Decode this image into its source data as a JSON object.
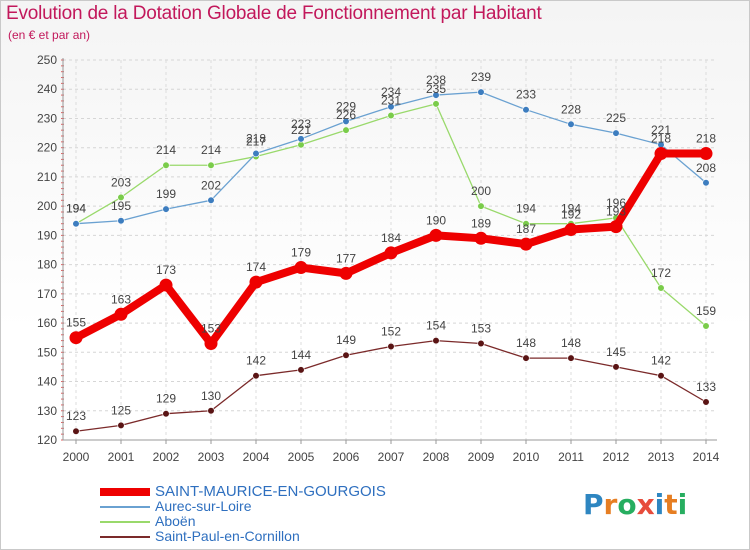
{
  "title": "Evolution de la Dotation Globale de Fonctionnement par Habitant",
  "subtitle": "(en € et par an)",
  "logo": {
    "text": "Proxiti",
    "letters": [
      "P",
      "r",
      "o",
      "x",
      "i",
      "t",
      "i"
    ],
    "colors": [
      "#2e86c1",
      "#e67e22",
      "#27ae60",
      "#e74c3c",
      "#2e86c1",
      "#e67e22",
      "#27ae60"
    ]
  },
  "chart_data": {
    "type": "line",
    "title": "Evolution de la Dotation Globale de Fonctionnement par Habitant",
    "subtitle": "(en € et par an)",
    "xlabel": "",
    "ylabel": "",
    "x": [
      "2000",
      "2001",
      "2002",
      "2003",
      "2004",
      "2005",
      "2006",
      "2007",
      "2008",
      "2009",
      "2010",
      "2011",
      "2012",
      "2013",
      "2014"
    ],
    "ylim": [
      120,
      250
    ],
    "yticks": [
      120,
      130,
      140,
      150,
      160,
      170,
      180,
      190,
      200,
      210,
      220,
      230,
      240,
      250
    ],
    "grid": true,
    "legend_position": "bottom-left",
    "series": [
      {
        "name": "Saint-Paul-en-Cornillon",
        "color": "#7b2a2a",
        "marker": "#5a1414",
        "emphasis": false,
        "values": [
          123,
          125,
          129,
          130,
          142,
          144,
          149,
          152,
          154,
          153,
          148,
          148,
          145,
          142,
          133
        ]
      },
      {
        "name": "Aboën",
        "color": "#99d96b",
        "marker": "#7acc4a",
        "emphasis": false,
        "values": [
          194,
          203,
          214,
          214,
          217,
          221,
          226,
          231,
          235,
          200,
          194,
          194,
          196,
          172,
          159
        ]
      },
      {
        "name": "Aurec-sur-Loire",
        "color": "#6aa1d1",
        "marker": "#3d7dbf",
        "emphasis": false,
        "values": [
          194,
          195,
          199,
          202,
          218,
          223,
          229,
          234,
          238,
          239,
          233,
          228,
          225,
          221,
          208
        ]
      },
      {
        "name": "SAINT-MAURICE-EN-GOURGOIS",
        "color": "#ee0000",
        "marker": "#ee0000",
        "emphasis": true,
        "values": [
          155,
          163,
          173,
          153,
          174,
          179,
          177,
          184,
          190,
          189,
          187,
          192,
          193,
          218,
          218
        ]
      }
    ],
    "legend_order": [
      "SAINT-MAURICE-EN-GOURGOIS",
      "Aurec-sur-Loire",
      "Aboën",
      "Saint-Paul-en-Cornillon"
    ]
  }
}
